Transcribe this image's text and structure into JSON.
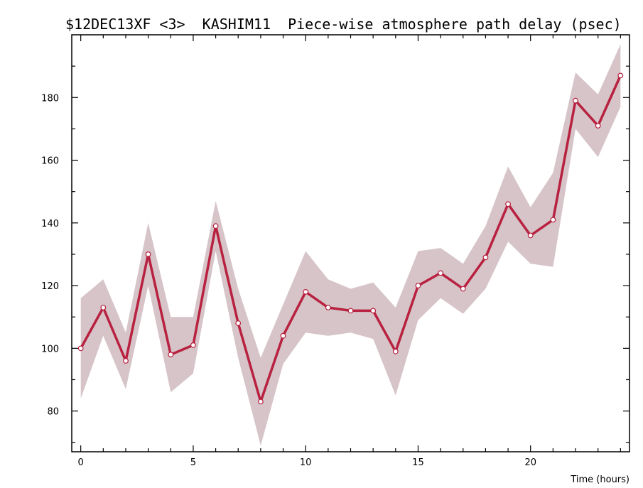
{
  "chart_data": {
    "type": "line",
    "title": "$12DEC13XF <3>  KASHIM11  Piece-wise atmosphere path delay (psec)",
    "xlabel": "Time (hours)",
    "ylabel": "",
    "xlim": [
      -0.4,
      24.4
    ],
    "ylim": [
      67,
      200
    ],
    "x_ticks": [
      0,
      5,
      10,
      15,
      20
    ],
    "y_ticks": [
      80,
      100,
      120,
      140,
      160,
      180
    ],
    "grid": false,
    "legend": "none",
    "colors": {
      "line": "#b8213f",
      "band": "#d6c4c8",
      "marker_fill": "#ffffff"
    },
    "series": [
      {
        "x": [
          0,
          1,
          2,
          3,
          4,
          5,
          6,
          7,
          8,
          9,
          10,
          11,
          12,
          13,
          14,
          15,
          16,
          17,
          18,
          19,
          20,
          21,
          22,
          23,
          24
        ],
        "values": [
          100,
          113,
          96,
          130,
          98,
          101,
          139,
          108,
          83,
          104,
          118,
          113,
          112,
          112,
          99,
          120,
          124,
          119,
          129,
          146,
          136,
          141,
          179,
          171,
          187
        ],
        "upper": [
          116,
          122,
          105,
          140,
          110,
          110,
          147,
          119,
          97,
          114,
          131,
          122,
          119,
          121,
          113,
          131,
          132,
          127,
          139,
          158,
          145,
          156,
          188,
          181,
          197
        ],
        "lower": [
          84,
          104,
          87,
          120,
          86,
          92,
          131,
          97,
          69,
          95,
          105,
          104,
          105,
          103,
          85,
          109,
          116,
          111,
          119,
          134,
          127,
          126,
          170,
          161,
          177
        ]
      }
    ]
  }
}
